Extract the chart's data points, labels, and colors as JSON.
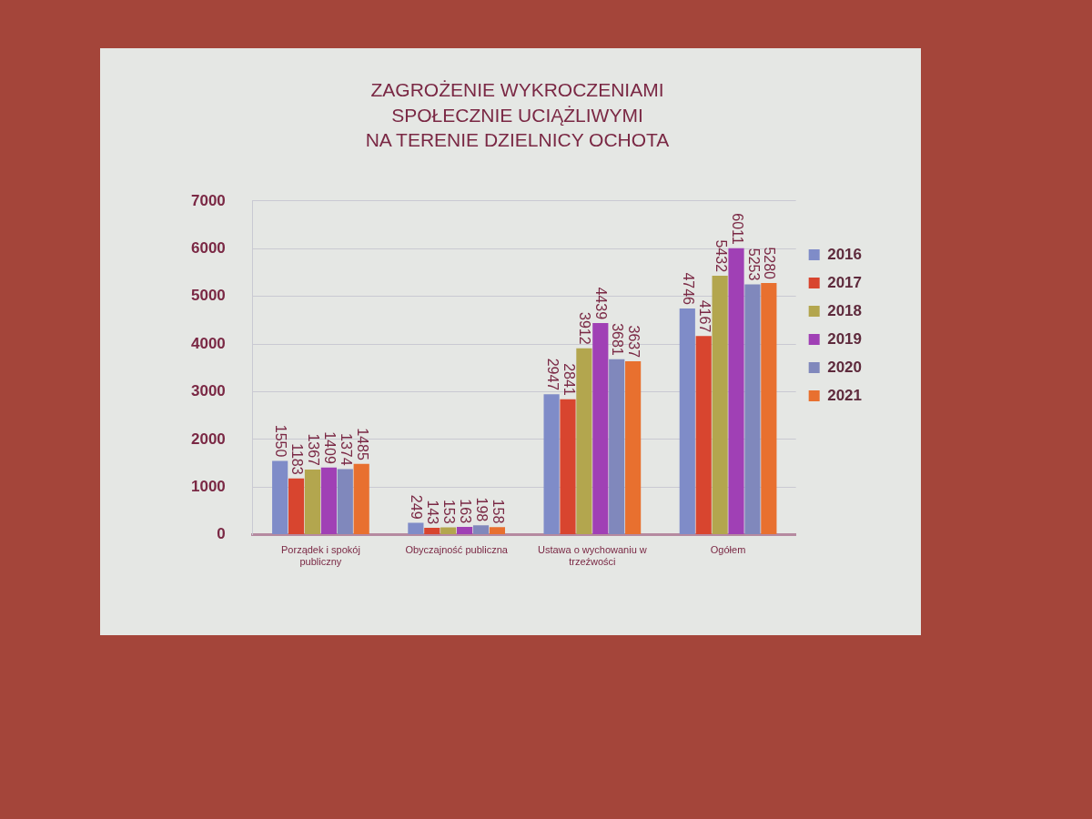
{
  "chart_data": {
    "type": "bar",
    "title": "ZAGROŻENIE WYKROCZENIAMI\nSPOŁECZNIE UCIĄŻLIWYMI\nNA TERENIE DZIELNICY OCHOTA",
    "categories": [
      "Porządek i spokój publiczny",
      "Obyczajność publiczna",
      "Ustawa o wychowaniu w trzeźwości",
      "Ogółem"
    ],
    "series": [
      {
        "name": "2016",
        "color": "#7f8cc8",
        "values": [
          1550,
          249,
          2947,
          4746
        ]
      },
      {
        "name": "2017",
        "color": "#d8452f",
        "values": [
          1183,
          143,
          2841,
          4167
        ]
      },
      {
        "name": "2018",
        "color": "#b3a64e",
        "values": [
          1367,
          153,
          3912,
          5432
        ]
      },
      {
        "name": "2019",
        "color": "#a040b5",
        "values": [
          1409,
          163,
          4439,
          6011
        ]
      },
      {
        "name": "2020",
        "color": "#8088bc",
        "values": [
          1374,
          198,
          3681,
          5253
        ]
      },
      {
        "name": "2021",
        "color": "#e8702f",
        "values": [
          1485,
          158,
          3637,
          5280
        ]
      }
    ],
    "ylim": [
      0,
      7000
    ],
    "yticks": [
      0,
      1000,
      2000,
      3000,
      4000,
      5000,
      6000,
      7000
    ],
    "grid": "y",
    "legend": "right",
    "data_labels": true
  }
}
